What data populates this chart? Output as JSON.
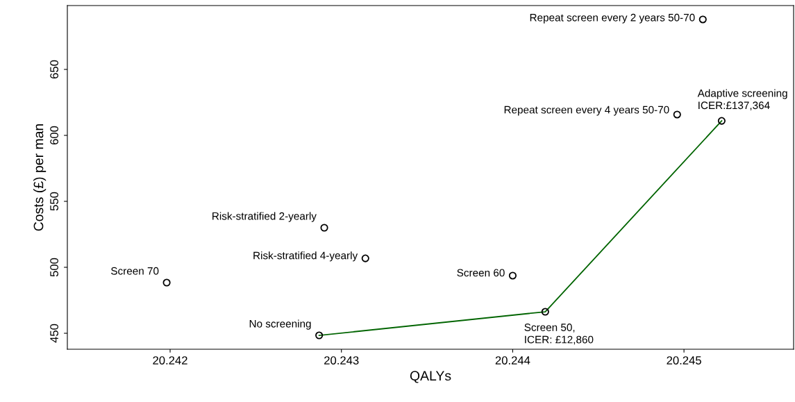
{
  "chart_data": {
    "type": "scatter",
    "xlabel": "QALYs",
    "ylabel": "Costs (£) per man",
    "xlim": [
      20.2414,
      20.24564
    ],
    "ylim": [
      437.9,
      698.4
    ],
    "xticks": [
      {
        "value": 20.242,
        "label": "20.242"
      },
      {
        "value": 20.243,
        "label": "20.243"
      },
      {
        "value": 20.244,
        "label": "20.244"
      },
      {
        "value": 20.245,
        "label": "20.245"
      }
    ],
    "yticks": [
      450,
      500,
      550,
      600,
      650
    ],
    "grid": false,
    "legend": false,
    "series": [
      {
        "type": "line",
        "color": "#006400",
        "marker": "none",
        "x": [
          20.24287,
          20.24419,
          20.24522
        ],
        "values": [
          448.4,
          466.3,
          611
        ]
      },
      {
        "color": "#000000",
        "marker": "circle",
        "x": [
          20.24198,
          20.2429,
          20.24314,
          20.24287,
          20.244,
          20.24419,
          20.24496,
          20.24522,
          20.24511
        ],
        "values": [
          488.4,
          530,
          506.8,
          448.4,
          493.7,
          466.3,
          615.8,
          611,
          687.9
        ]
      }
    ],
    "annotations": [
      {
        "text": "Screen 70",
        "x": 20.24198,
        "y": 488.4
      },
      {
        "text": "Risk-stratified 2-yearly",
        "x": 20.2429,
        "y": 530
      },
      {
        "text": "Risk-stratified 4-yearly",
        "x": 20.24314,
        "y": 506.8
      },
      {
        "text": "No screening",
        "x": 20.24287,
        "y": 448.4
      },
      {
        "text": "Screen 60",
        "x": 20.244,
        "y": 493.7
      },
      {
        "text": "Screen 50,\nICER: £12,860",
        "x": 20.24419,
        "y": 466.3
      },
      {
        "text": "Repeat screen every 4 years 50-70",
        "x": 20.24496,
        "y": 615.8
      },
      {
        "text": "Adaptive screening\nICER:£137,364",
        "x": 20.24522,
        "y": 611
      },
      {
        "text": "Repeat screen every 2 years 50-70",
        "x": 20.24511,
        "y": 687.9
      }
    ]
  }
}
